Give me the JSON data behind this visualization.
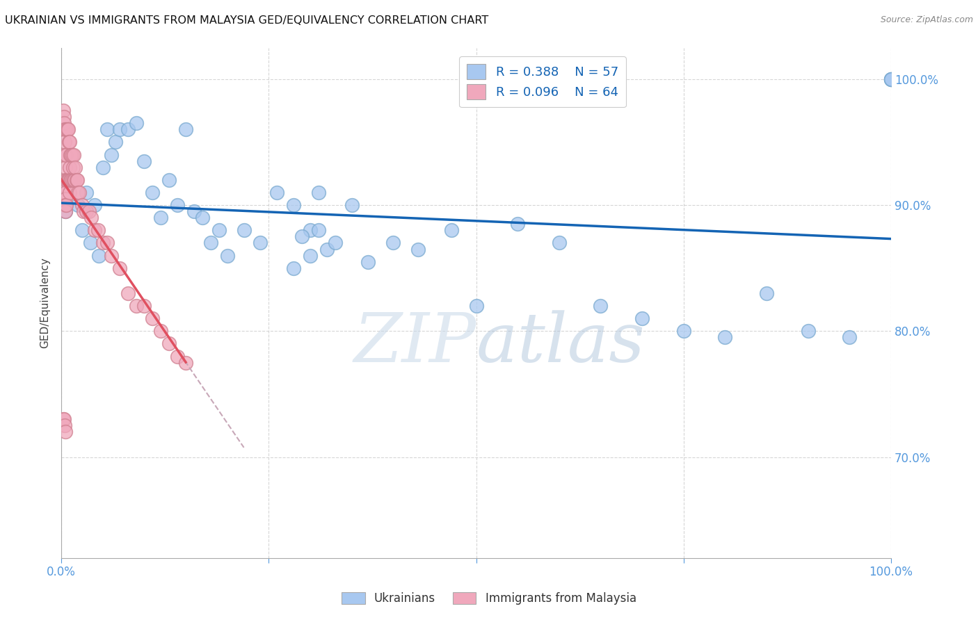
{
  "title": "UKRAINIAN VS IMMIGRANTS FROM MALAYSIA GED/EQUIVALENCY CORRELATION CHART",
  "source": "Source: ZipAtlas.com",
  "ylabel": "GED/Equivalency",
  "watermark": "ZIPatlas",
  "legend_blue_r": "R = 0.388",
  "legend_blue_n": "N = 57",
  "legend_pink_r": "R = 0.096",
  "legend_pink_n": "N = 64",
  "legend_label_blue": "Ukrainians",
  "legend_label_pink": "Immigrants from Malaysia",
  "blue_color": "#a8c8f0",
  "blue_edge_color": "#7aaad0",
  "pink_color": "#f0a8bc",
  "pink_edge_color": "#d08090",
  "trendline_blue_color": "#1464b4",
  "trendline_pink_color": "#e05060",
  "trendline_pink_dash_color": "#c8a8b8",
  "xmin": 0.0,
  "xmax": 1.0,
  "ymin": 0.62,
  "ymax": 1.025,
  "grid_color": "#cccccc",
  "bg_color": "#ffffff",
  "title_fontsize": 11.5,
  "axis_label_color": "#5599dd",
  "tick_color": "#5599dd",
  "blue_x": [
    0.005,
    0.01,
    0.02,
    0.025,
    0.03,
    0.035,
    0.04,
    0.045,
    0.05,
    0.055,
    0.06,
    0.065,
    0.07,
    0.08,
    0.09,
    0.1,
    0.11,
    0.12,
    0.13,
    0.14,
    0.15,
    0.16,
    0.17,
    0.18,
    0.19,
    0.2,
    0.22,
    0.24,
    0.26,
    0.28,
    0.3,
    0.31,
    0.32,
    0.33,
    0.35,
    0.37,
    0.4,
    0.43,
    0.47,
    0.5,
    0.28,
    0.29,
    0.3,
    0.31,
    0.55,
    0.6,
    0.65,
    0.7,
    0.75,
    0.8,
    0.85,
    0.9,
    0.95,
    1.0,
    1.0,
    1.0,
    1.0
  ],
  "blue_y": [
    0.895,
    0.92,
    0.9,
    0.88,
    0.91,
    0.87,
    0.9,
    0.86,
    0.93,
    0.96,
    0.94,
    0.95,
    0.96,
    0.96,
    0.965,
    0.935,
    0.91,
    0.89,
    0.92,
    0.9,
    0.96,
    0.895,
    0.89,
    0.87,
    0.88,
    0.86,
    0.88,
    0.87,
    0.91,
    0.9,
    0.88,
    0.91,
    0.865,
    0.87,
    0.9,
    0.855,
    0.87,
    0.865,
    0.88,
    0.82,
    0.85,
    0.875,
    0.86,
    0.88,
    0.885,
    0.87,
    0.82,
    0.81,
    0.8,
    0.795,
    0.83,
    0.8,
    0.795,
    1.0,
    1.0,
    1.0,
    1.0
  ],
  "pink_x": [
    0.002,
    0.003,
    0.003,
    0.004,
    0.004,
    0.004,
    0.005,
    0.005,
    0.005,
    0.005,
    0.005,
    0.005,
    0.005,
    0.006,
    0.006,
    0.006,
    0.006,
    0.007,
    0.007,
    0.008,
    0.008,
    0.009,
    0.009,
    0.01,
    0.01,
    0.01,
    0.011,
    0.011,
    0.012,
    0.012,
    0.013,
    0.013,
    0.014,
    0.015,
    0.015,
    0.016,
    0.017,
    0.018,
    0.019,
    0.02,
    0.022,
    0.025,
    0.027,
    0.03,
    0.033,
    0.036,
    0.04,
    0.044,
    0.05,
    0.055,
    0.06,
    0.07,
    0.08,
    0.09,
    0.1,
    0.11,
    0.12,
    0.13,
    0.14,
    0.15,
    0.002,
    0.003,
    0.004,
    0.005
  ],
  "pink_y": [
    0.975,
    0.97,
    0.965,
    0.96,
    0.95,
    0.94,
    0.93,
    0.92,
    0.915,
    0.91,
    0.905,
    0.9,
    0.895,
    0.96,
    0.94,
    0.92,
    0.9,
    0.96,
    0.92,
    0.96,
    0.92,
    0.95,
    0.92,
    0.95,
    0.93,
    0.91,
    0.94,
    0.92,
    0.94,
    0.92,
    0.94,
    0.92,
    0.93,
    0.94,
    0.92,
    0.92,
    0.93,
    0.92,
    0.92,
    0.91,
    0.91,
    0.9,
    0.895,
    0.895,
    0.895,
    0.89,
    0.88,
    0.88,
    0.87,
    0.87,
    0.86,
    0.85,
    0.83,
    0.82,
    0.82,
    0.81,
    0.8,
    0.79,
    0.78,
    0.775,
    0.73,
    0.73,
    0.725,
    0.72
  ]
}
